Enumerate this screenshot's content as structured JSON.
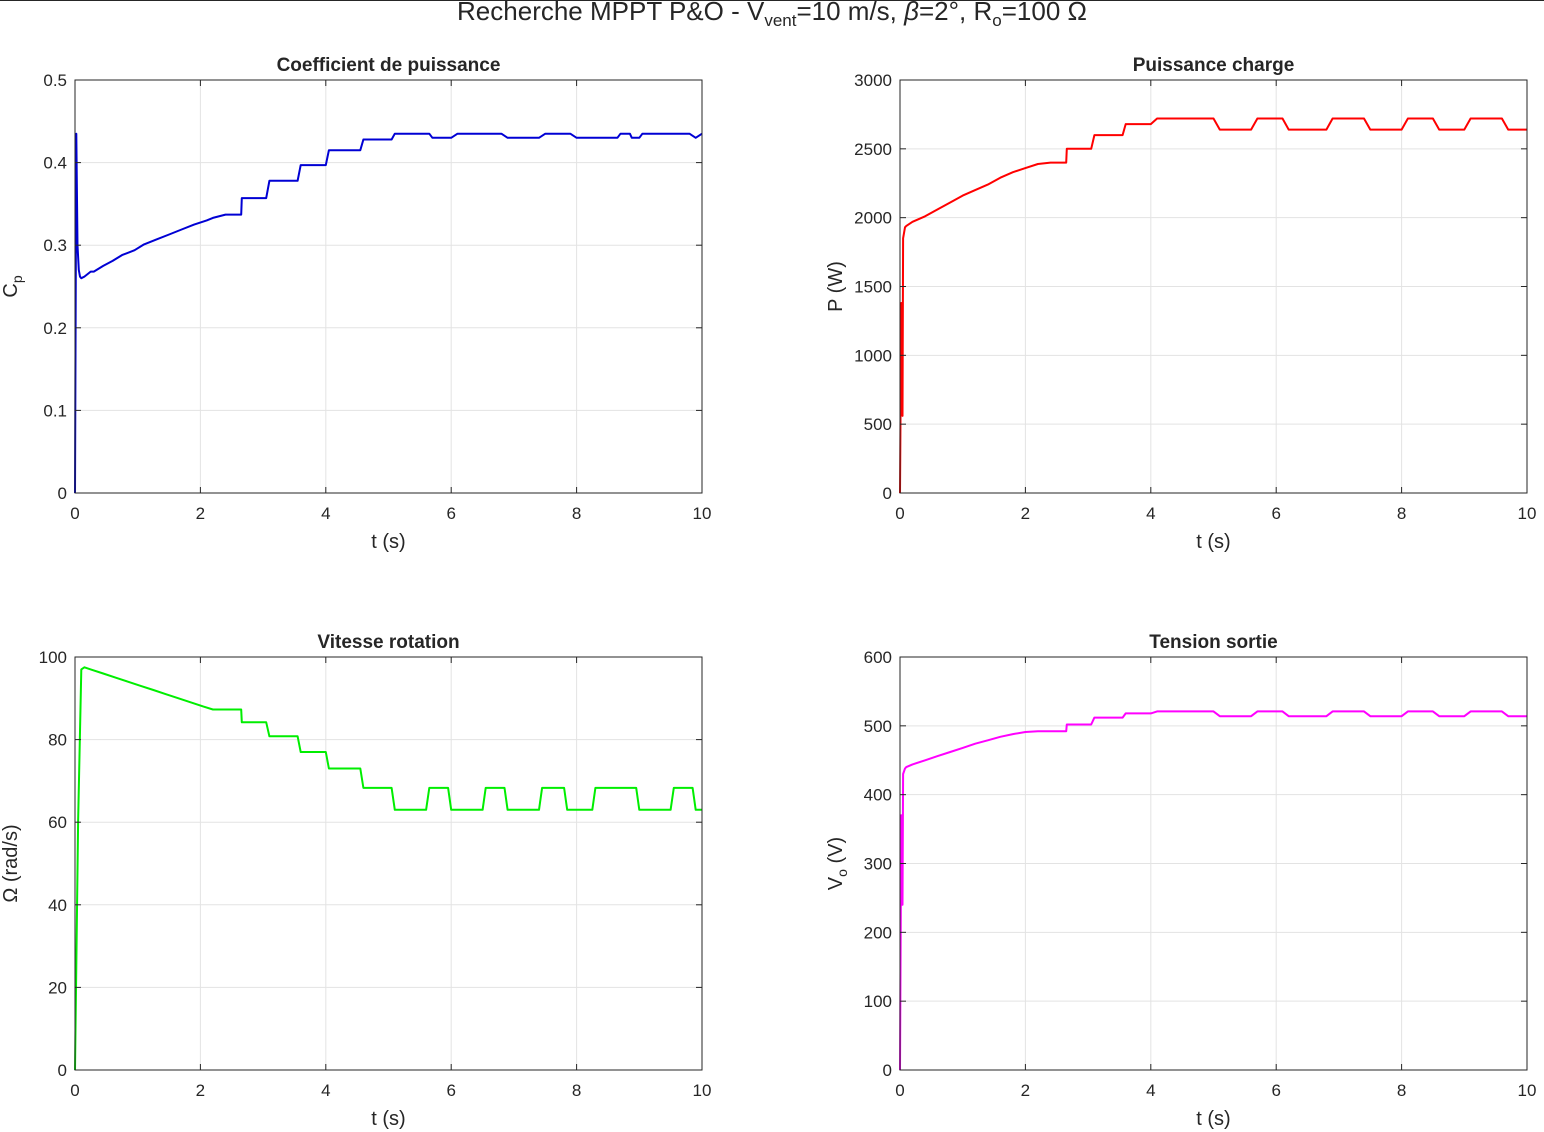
{
  "figure": {
    "title_parts": {
      "prefix": "Recherche MPPT P&O - V",
      "sub_vent": "vent",
      "mid1": "=10 m/s, ",
      "beta": "β",
      "mid2": "=2°, R",
      "sub_o": "o",
      "suffix": "=100 Ω"
    }
  },
  "chart_data": [
    {
      "type": "line",
      "title": "Coefficient de puissance",
      "xlabel": "t (s)",
      "ylabel_main": "C",
      "ylabel_sub": "p",
      "ylabel_suffix": "",
      "xlim": [
        0,
        10
      ],
      "ylim": [
        0,
        0.5
      ],
      "xticks": [
        0,
        2,
        4,
        6,
        8,
        10
      ],
      "yticks": [
        0,
        0.1,
        0.2,
        0.3,
        0.4,
        0.5
      ],
      "grid": true,
      "color": "#0000d4",
      "series": [
        {
          "x": [
            0,
            0.02,
            0.04,
            0.06,
            0.08,
            0.1,
            0.15,
            0.25,
            0.3,
            0.45,
            0.6,
            0.75,
            0.95,
            1.1,
            1.3,
            1.5,
            1.7,
            1.9,
            2.1,
            2.2,
            2.4,
            2.65,
            2.66,
            3.05,
            3.1,
            3.55,
            3.6,
            4.0,
            4.05,
            4.55,
            4.6,
            5.05,
            5.1,
            5.65,
            5.7,
            6.0,
            6.1,
            6.8,
            6.9,
            7.4,
            7.5,
            7.9,
            8.0,
            8.65,
            8.7,
            8.85,
            8.88,
            9.0,
            9.05,
            9.8,
            9.9,
            10.0
          ],
          "y": [
            0.0,
            0.435,
            0.3,
            0.27,
            0.262,
            0.26,
            0.262,
            0.268,
            0.268,
            0.275,
            0.281,
            0.288,
            0.294,
            0.301,
            0.307,
            0.313,
            0.319,
            0.325,
            0.33,
            0.333,
            0.337,
            0.337,
            0.357,
            0.357,
            0.378,
            0.378,
            0.397,
            0.397,
            0.415,
            0.415,
            0.428,
            0.428,
            0.435,
            0.435,
            0.43,
            0.43,
            0.435,
            0.435,
            0.43,
            0.43,
            0.435,
            0.435,
            0.43,
            0.43,
            0.435,
            0.435,
            0.43,
            0.43,
            0.435,
            0.435,
            0.43,
            0.435
          ]
        }
      ]
    },
    {
      "type": "line",
      "title": "Puissance charge",
      "xlabel": "t (s)",
      "ylabel_main": "P (W)",
      "ylabel_sub": "",
      "ylabel_suffix": "",
      "xlim": [
        0,
        10
      ],
      "ylim": [
        0,
        3000
      ],
      "xticks": [
        0,
        2,
        4,
        6,
        8,
        10
      ],
      "yticks": [
        0,
        500,
        1000,
        1500,
        2000,
        2500,
        3000
      ],
      "grid": true,
      "color": "#ff0000",
      "series": [
        {
          "x": [
            0,
            0.02,
            0.04,
            0.05,
            0.08,
            0.1,
            0.2,
            0.4,
            0.6,
            0.8,
            1.0,
            1.2,
            1.4,
            1.6,
            1.8,
            2.0,
            2.2,
            2.4,
            2.65,
            2.66,
            3.05,
            3.1,
            3.55,
            3.6,
            4.0,
            4.1,
            4.5,
            5.0,
            5.1,
            5.6,
            5.7,
            6.1,
            6.2,
            6.8,
            6.9,
            7.4,
            7.5,
            8.0,
            8.1,
            8.5,
            8.6,
            9.0,
            9.1,
            9.6,
            9.7,
            10.0
          ],
          "y": [
            0,
            1380,
            560,
            1850,
            1930,
            1940,
            1970,
            2010,
            2060,
            2110,
            2160,
            2200,
            2240,
            2290,
            2330,
            2360,
            2390,
            2400,
            2400,
            2500,
            2500,
            2600,
            2600,
            2680,
            2680,
            2720,
            2720,
            2720,
            2640,
            2640,
            2720,
            2720,
            2640,
            2640,
            2720,
            2720,
            2640,
            2640,
            2720,
            2720,
            2640,
            2640,
            2720,
            2720,
            2640,
            2640
          ]
        }
      ]
    },
    {
      "type": "line",
      "title": "Vitesse rotation",
      "xlabel": "t (s)",
      "ylabel_main": "Ω (rad/s)",
      "ylabel_sub": "",
      "ylabel_suffix": "",
      "xlim": [
        0,
        10
      ],
      "ylim": [
        0,
        100
      ],
      "xticks": [
        0,
        2,
        4,
        6,
        8,
        10
      ],
      "yticks": [
        0,
        20,
        40,
        60,
        80,
        100
      ],
      "grid": true,
      "color": "#00ee00",
      "series": [
        {
          "x": [
            0,
            0.05,
            0.1,
            0.15,
            0.25,
            0.45,
            0.65,
            0.85,
            1.05,
            1.25,
            1.45,
            1.65,
            1.85,
            2.05,
            2.2,
            2.65,
            2.66,
            3.05,
            3.1,
            3.55,
            3.6,
            4.0,
            4.05,
            4.55,
            4.6,
            5.05,
            5.1,
            5.6,
            5.65,
            5.95,
            6.0,
            6.5,
            6.55,
            6.85,
            6.9,
            7.4,
            7.45,
            7.8,
            7.85,
            8.25,
            8.3,
            8.95,
            9.0,
            9.5,
            9.55,
            9.85,
            9.9,
            10.0
          ],
          "y": [
            0,
            60,
            97,
            97.5,
            97,
            96,
            95,
            94,
            93,
            92,
            91,
            90,
            89,
            88,
            87.3,
            87.3,
            84.2,
            84.2,
            80.8,
            80.8,
            77,
            77,
            73,
            73,
            68.3,
            68.3,
            63,
            63,
            68.3,
            68.3,
            63,
            63,
            68.3,
            68.3,
            63,
            63,
            68.3,
            68.3,
            63,
            63,
            68.3,
            68.3,
            63,
            63,
            68.3,
            68.3,
            63,
            63
          ]
        }
      ]
    },
    {
      "type": "line",
      "title": "Tension sortie",
      "xlabel": "t (s)",
      "ylabel_main": "V",
      "ylabel_sub": "o",
      "ylabel_suffix": " (V)",
      "xlim": [
        0,
        10
      ],
      "ylim": [
        0,
        600
      ],
      "xticks": [
        0,
        2,
        4,
        6,
        8,
        10
      ],
      "yticks": [
        0,
        100,
        200,
        300,
        400,
        500,
        600
      ],
      "grid": true,
      "color": "#ff00ff",
      "series": [
        {
          "x": [
            0,
            0.02,
            0.04,
            0.05,
            0.08,
            0.1,
            0.2,
            0.4,
            0.6,
            0.8,
            1.0,
            1.2,
            1.4,
            1.6,
            1.8,
            2.0,
            2.2,
            2.4,
            2.65,
            2.66,
            3.05,
            3.1,
            3.55,
            3.6,
            4.0,
            4.1,
            4.5,
            5.0,
            5.1,
            5.6,
            5.7,
            6.1,
            6.2,
            6.8,
            6.9,
            7.4,
            7.5,
            8.0,
            8.1,
            8.5,
            8.6,
            9.0,
            9.1,
            9.6,
            9.7,
            10.0
          ],
          "y": [
            0,
            370,
            240,
            430,
            438,
            440,
            444,
            450,
            456,
            462,
            468,
            474,
            479,
            484,
            488,
            491,
            492,
            492,
            492,
            502,
            502,
            512,
            512,
            518,
            518,
            521,
            521,
            521,
            514,
            514,
            521,
            521,
            514,
            514,
            521,
            521,
            514,
            514,
            521,
            521,
            514,
            514,
            521,
            521,
            514,
            514
          ]
        }
      ]
    }
  ]
}
